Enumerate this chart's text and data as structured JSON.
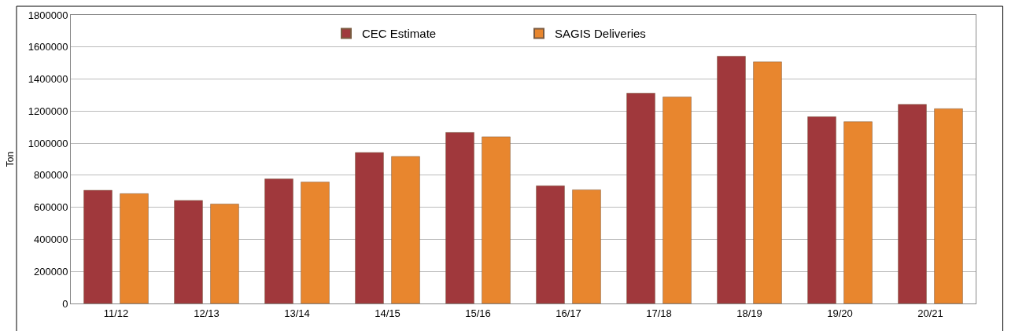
{
  "chart_data": {
    "type": "bar",
    "ylabel": "Ton",
    "categories": [
      "11/12",
      "12/13",
      "13/14",
      "14/15",
      "15/16",
      "16/17",
      "17/18",
      "18/19",
      "19/20",
      "20/21"
    ],
    "series": [
      {
        "name": "CEC Estimate",
        "color": "#a0383c",
        "values": [
          706000,
          643000,
          777000,
          942000,
          1067000,
          734000,
          1312000,
          1542000,
          1165000,
          1242000
        ]
      },
      {
        "name": "SAGIS Deliveries",
        "color": "#e8862e",
        "values": [
          685000,
          620000,
          758000,
          917000,
          1040000,
          709000,
          1289000,
          1507000,
          1134000,
          1215000
        ]
      }
    ],
    "ylim": [
      0,
      1800000
    ],
    "yticks": [
      0,
      200000,
      400000,
      600000,
      800000,
      1000000,
      1200000,
      1400000,
      1600000,
      1800000
    ],
    "grid": "y",
    "legend": "top"
  }
}
